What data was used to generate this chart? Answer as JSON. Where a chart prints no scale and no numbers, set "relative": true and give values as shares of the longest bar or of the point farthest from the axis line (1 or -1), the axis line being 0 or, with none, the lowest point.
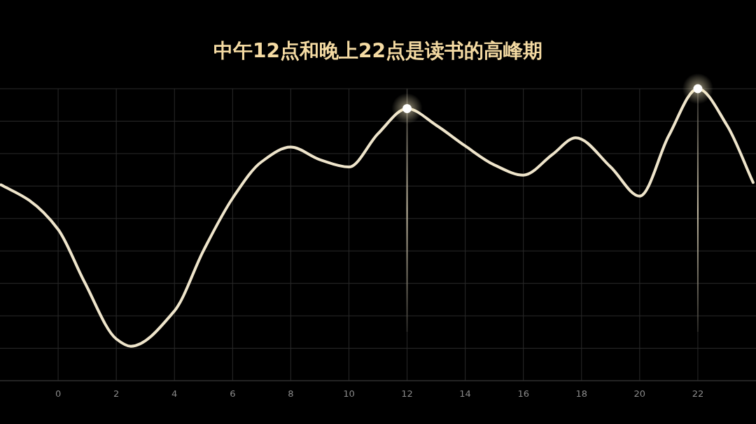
{
  "chart_data": {
    "type": "line",
    "title": "中午12点和晚上22点是读书的高峰期",
    "relative": true,
    "grid": true,
    "tick_labels": "x",
    "xlim": [
      -2,
      24
    ],
    "xticks": [
      0,
      2,
      4,
      6,
      8,
      10,
      12,
      14,
      16,
      18,
      20,
      22
    ],
    "ref_lines": [
      {
        "axis": "x",
        "value": 12,
        "color": "#d8ceb4"
      },
      {
        "axis": "x",
        "value": 22,
        "color": "#d8ceb4"
      }
    ],
    "series": [
      {
        "color": "#efe5cb",
        "marker": "none",
        "line_style": "solid",
        "x": [
          -1.97,
          -1,
          0,
          0.9,
          2,
          2.5,
          4,
          5,
          6,
          7,
          8,
          9,
          10,
          11,
          12,
          13,
          14,
          15,
          16,
          17,
          17.8,
          19,
          20,
          21,
          22,
          23,
          23.9
        ],
        "values": [
          0.671,
          0.618,
          0.518,
          0.339,
          0.143,
          0.118,
          0.239,
          0.446,
          0.625,
          0.75,
          0.8,
          0.757,
          0.732,
          0.846,
          0.932,
          0.875,
          0.804,
          0.739,
          0.704,
          0.775,
          0.832,
          0.732,
          0.632,
          0.839,
          1.0,
          0.875,
          0.679
        ]
      },
      {
        "type": "scatter",
        "color": "#ffffff",
        "marker": "circle",
        "x": [
          12,
          22
        ],
        "values": [
          0.932,
          1.0
        ]
      }
    ]
  }
}
